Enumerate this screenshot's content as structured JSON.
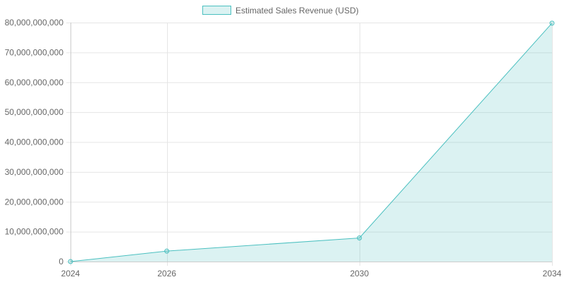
{
  "chart_data": {
    "type": "area",
    "title": "",
    "xlabel": "",
    "ylabel": "",
    "x": [
      "2024",
      "2026",
      "2030",
      "2034"
    ],
    "x_numeric": [
      2024,
      2026,
      2030,
      2034
    ],
    "ylim": [
      0,
      80000000000
    ],
    "y_ticks": [
      0,
      10000000000,
      20000000000,
      30000000000,
      40000000000,
      50000000000,
      60000000000,
      70000000000,
      80000000000
    ],
    "y_tick_labels": [
      "0",
      "10,000,000,000",
      "20,000,000,000",
      "30,000,000,000",
      "40,000,000,000",
      "50,000,000,000",
      "60,000,000,000",
      "70,000,000,000",
      "80,000,000,000"
    ],
    "grid": true,
    "legend_position": "top-center",
    "series": [
      {
        "name": "Estimated Sales Revenue (USD)",
        "values": [
          0,
          3500000000,
          7900000000,
          79800000000
        ],
        "line_color": "#4bc0c0",
        "fill_color": "rgba(75,192,192,0.2)"
      }
    ]
  },
  "colors": {
    "grid": "#e5e5e5",
    "axis": "#cccccc",
    "text": "#666666"
  }
}
